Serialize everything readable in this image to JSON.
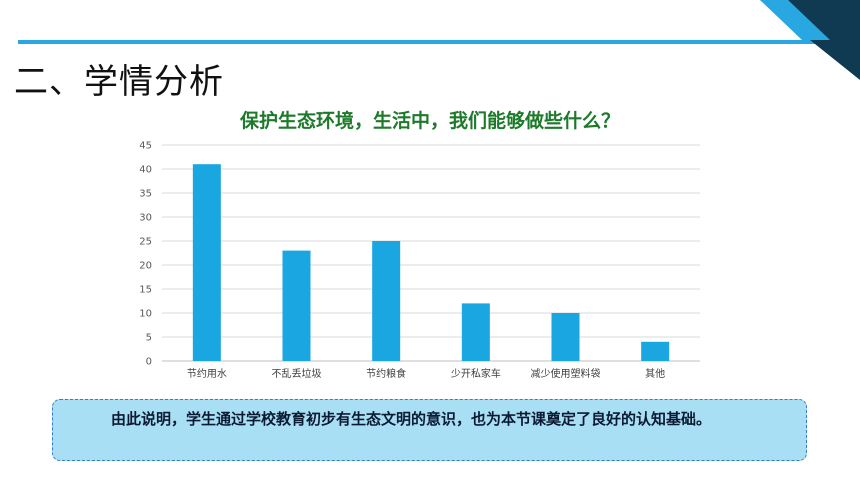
{
  "page": {
    "title": "二、学情分析"
  },
  "colors": {
    "accent": "#29a7e1",
    "bar": "#1aa6e0",
    "chart_title": "#1e7a2b",
    "corner_dark": "#0f3a52",
    "note_bg": "#a9dff4"
  },
  "chart_data": {
    "type": "bar",
    "title": "保护生态环境，生活中，我们能够做些什么？",
    "xlabel": "",
    "ylabel": "",
    "categories": [
      "节约用水",
      "不乱丢垃圾",
      "节约粮食",
      "少开私家车",
      "减少使用塑料袋",
      "其他"
    ],
    "values": [
      41,
      23,
      25,
      12,
      10,
      4
    ],
    "ylim": [
      0,
      45
    ],
    "yticks": [
      0,
      5,
      10,
      15,
      20,
      25,
      30,
      35,
      40,
      45
    ],
    "grid": true,
    "legend": "none"
  },
  "note": {
    "text": "由此说明，学生通过学校教育初步有生态文明的意识，也为本节课奠定了良好的认知基础。"
  }
}
